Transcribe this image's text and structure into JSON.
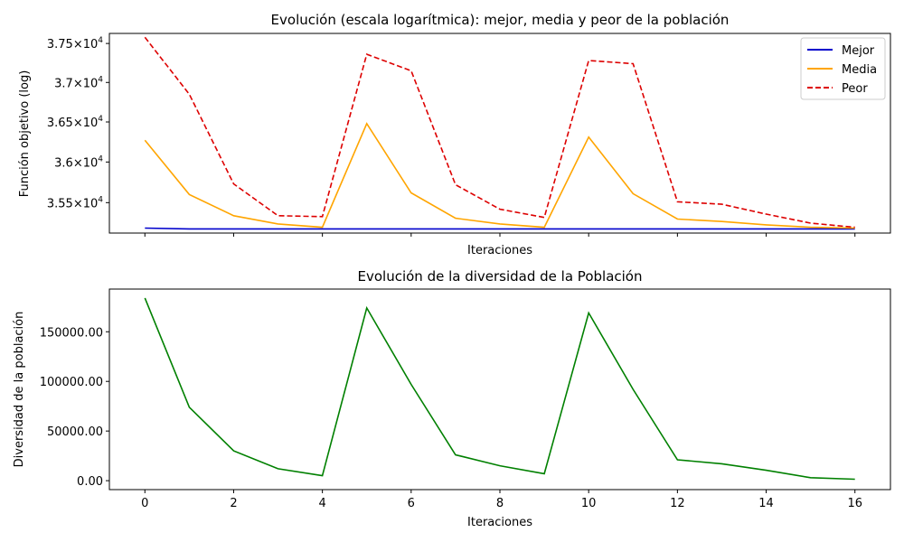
{
  "chart_data": [
    {
      "type": "line",
      "title": "Evolución (escala logarítmica): mejor, media y peor de la población",
      "xlabel": "Iteraciones",
      "ylabel": "Función objetivo (log)",
      "yscale": "log",
      "xlim": [
        -0.8,
        16.8
      ],
      "ylim": [
        35130,
        37630
      ],
      "x": [
        0,
        1,
        2,
        3,
        4,
        5,
        6,
        7,
        8,
        9,
        10,
        11,
        12,
        13,
        14,
        15,
        16
      ],
      "yticks": [
        {
          "value": 35500,
          "mantissa": "3.55",
          "times": "×",
          "base": "10",
          "exp": "4"
        },
        {
          "value": 36000,
          "mantissa": "3.6",
          "times": "×",
          "base": "10",
          "exp": "4"
        },
        {
          "value": 36500,
          "mantissa": "3.65",
          "times": "×",
          "base": "10",
          "exp": "4"
        },
        {
          "value": 37000,
          "mantissa": "3.7",
          "times": "×",
          "base": "10",
          "exp": "4"
        },
        {
          "value": 37500,
          "mantissa": "3.75",
          "times": "×",
          "base": "10",
          "exp": "4"
        }
      ],
      "legend_position": "top-right",
      "grid": false,
      "series": [
        {
          "name": "Mejor",
          "color": "#0000cc",
          "dash": "solid",
          "values": [
            35190,
            35180,
            35180,
            35180,
            35180,
            35180,
            35180,
            35180,
            35180,
            35180,
            35180,
            35180,
            35180,
            35180,
            35180,
            35180,
            35180
          ]
        },
        {
          "name": "Media",
          "color": "#ffa500",
          "dash": "solid",
          "values": [
            36270,
            35600,
            35340,
            35240,
            35200,
            36480,
            35620,
            35310,
            35240,
            35200,
            36310,
            35610,
            35300,
            35270,
            35230,
            35200,
            35190
          ]
        },
        {
          "name": "Peor",
          "color": "#dd0000",
          "dash": "dashed",
          "values": [
            37580,
            36850,
            35730,
            35340,
            35330,
            37360,
            37150,
            35720,
            35420,
            35320,
            37280,
            37240,
            35510,
            35480,
            35360,
            35250,
            35200
          ]
        }
      ]
    },
    {
      "type": "line",
      "title": "Evolución de la diversidad de la Población",
      "xlabel": "Iteraciones",
      "ylabel": "Diversidad de la población",
      "xlim": [
        -0.8,
        16.8
      ],
      "ylim": [
        -9000,
        193000
      ],
      "x": [
        0,
        1,
        2,
        3,
        4,
        5,
        6,
        7,
        8,
        9,
        10,
        11,
        12,
        13,
        14,
        15,
        16
      ],
      "xticks": [
        "0",
        "2",
        "4",
        "6",
        "8",
        "10",
        "12",
        "14",
        "16"
      ],
      "yticks": [
        {
          "value": 0,
          "label": "0.00"
        },
        {
          "value": 50000,
          "label": "50000.00"
        },
        {
          "value": 100000,
          "label": "100000.00"
        },
        {
          "value": 150000,
          "label": "150000.00"
        }
      ],
      "grid": false,
      "series": [
        {
          "color": "#008000",
          "dash": "solid",
          "values": [
            184000,
            74000,
            30000,
            12000,
            5000,
            174000,
            97000,
            26000,
            15000,
            7000,
            169000,
            92000,
            21000,
            17000,
            10500,
            3000,
            1500
          ]
        }
      ]
    }
  ]
}
